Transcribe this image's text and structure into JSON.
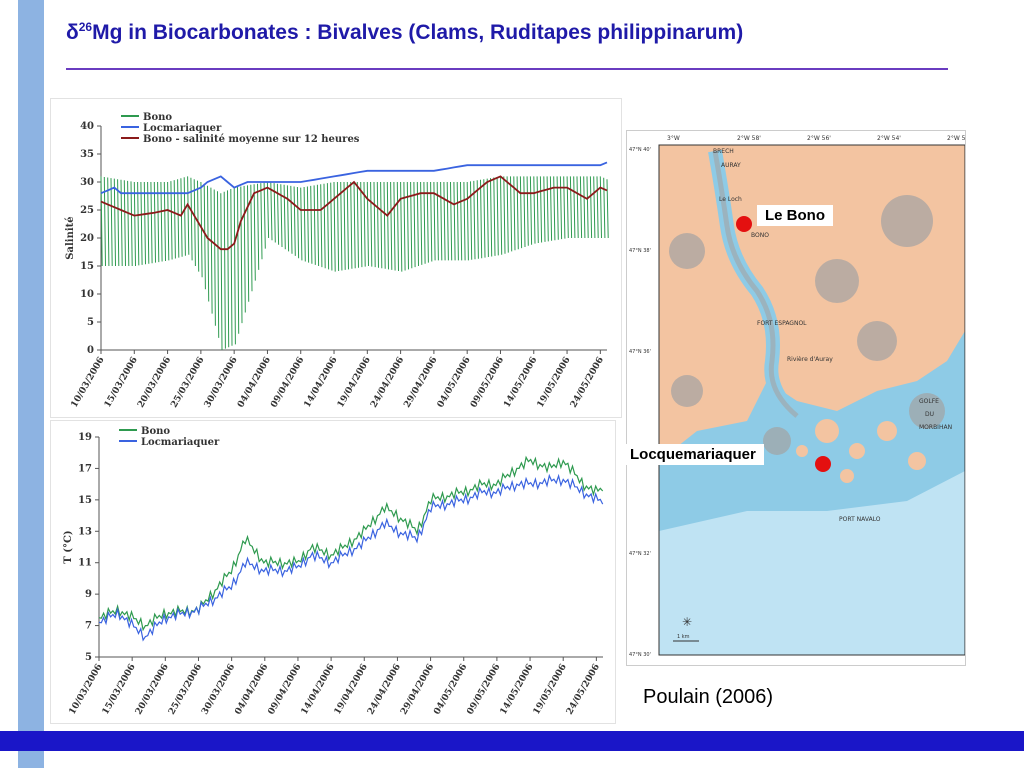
{
  "slide": {
    "title_delta": "δ",
    "title_sup": "26",
    "title_rest": "Mg in Biocarbonates : Bivalves (Clams, Ruditapes philippinarum)",
    "citation": "Poulain (2006)"
  },
  "colors": {
    "green": "#2e9a4f",
    "blue": "#3a63e0",
    "red": "#8b1a1a",
    "accent": "#1f1aa8"
  },
  "chart_data": [
    {
      "type": "line",
      "ylabel": "Salinité",
      "ylim": [
        0,
        40
      ],
      "yticks": [
        0,
        5,
        10,
        15,
        20,
        25,
        30,
        35,
        40
      ],
      "xticks": [
        "10/03/2006",
        "15/03/2006",
        "20/03/2006",
        "25/03/2006",
        "30/03/2006",
        "04/04/2006",
        "09/04/2006",
        "14/04/2006",
        "19/04/2006",
        "24/04/2006",
        "29/04/2006",
        "04/05/2006",
        "09/05/2006",
        "14/05/2006",
        "19/05/2006",
        "24/05/2006"
      ],
      "series": [
        {
          "name": "Bono",
          "color": "#2e9a4f",
          "kind": "envelope",
          "days": [
            0,
            5,
            10,
            13,
            15,
            18,
            20,
            25,
            30,
            35,
            40,
            45,
            50,
            55,
            60,
            65,
            70,
            75,
            77
          ],
          "upper": [
            31,
            30,
            30,
            31,
            30,
            28,
            29,
            30,
            29,
            30,
            30,
            30,
            30,
            30,
            31,
            31,
            31,
            31,
            30
          ],
          "lower": [
            15,
            15,
            16,
            17,
            13,
            0,
            1,
            20,
            16,
            14,
            15,
            14,
            16,
            16,
            17,
            19,
            20,
            20,
            20
          ]
        },
        {
          "name": "Locmariaquer",
          "color": "#3a63e0",
          "days": [
            0,
            2,
            3,
            5,
            8,
            10,
            13,
            15,
            16,
            18,
            20,
            22,
            25,
            30,
            35,
            40,
            45,
            50,
            55,
            60,
            65,
            70,
            75,
            77
          ],
          "values": [
            28,
            29,
            28,
            28,
            28,
            28,
            28,
            29,
            30,
            31,
            29,
            30,
            30,
            30,
            31,
            32,
            32,
            32,
            33,
            33,
            33,
            33,
            33,
            34
          ]
        },
        {
          "name": "Bono - salinité moyenne sur 12 heures",
          "color": "#8b1a1a",
          "days": [
            0,
            3,
            5,
            8,
            10,
            12,
            13,
            15,
            16,
            17,
            18,
            19,
            20,
            21,
            23,
            25,
            28,
            30,
            33,
            35,
            38,
            40,
            43,
            45,
            48,
            50,
            53,
            55,
            58,
            60,
            63,
            65,
            68,
            70,
            73,
            75,
            77
          ],
          "values": [
            26.5,
            25,
            24,
            24.5,
            25,
            24,
            26,
            22,
            20,
            19,
            18,
            18,
            19,
            23,
            28,
            29,
            27,
            25,
            25,
            27,
            30,
            27,
            24,
            27,
            28,
            28,
            26,
            27,
            30,
            31,
            28,
            28,
            29,
            29,
            27,
            29,
            28
          ]
        }
      ]
    },
    {
      "type": "line",
      "ylabel": "T (°C)",
      "ylim": [
        5,
        19
      ],
      "yticks": [
        5,
        7,
        9,
        11,
        13,
        15,
        17,
        19
      ],
      "xticks": [
        "10/03/2006",
        "15/03/2006",
        "20/03/2006",
        "25/03/2006",
        "30/03/2006",
        "04/04/2006",
        "09/04/2006",
        "14/04/2006",
        "19/04/2006",
        "24/04/2006",
        "29/04/2006",
        "04/05/2006",
        "09/05/2006",
        "14/05/2006",
        "19/05/2006",
        "24/05/2006"
      ],
      "series": [
        {
          "name": "Bono",
          "color": "#2e9a4f",
          "days": [
            0,
            3,
            5,
            7,
            10,
            15,
            20,
            22,
            25,
            28,
            30,
            32,
            35,
            37,
            40,
            43,
            45,
            48,
            50,
            55,
            58,
            60,
            63,
            65,
            68,
            70,
            73,
            75,
            77
          ],
          "values": [
            7.5,
            8,
            7.5,
            7,
            7.8,
            8,
            10.5,
            12.5,
            11,
            11,
            11,
            12,
            11.5,
            12,
            13,
            14.5,
            14,
            13,
            15,
            15.5,
            16,
            16,
            17,
            17.5,
            17,
            17.5,
            16,
            15.5,
            16
          ]
        },
        {
          "name": "Locmariaquer",
          "color": "#3a63e0",
          "days": [
            0,
            3,
            5,
            7,
            10,
            15,
            20,
            22,
            25,
            28,
            30,
            32,
            35,
            37,
            40,
            43,
            45,
            48,
            50,
            55,
            58,
            60,
            63,
            65,
            68,
            70,
            73,
            75,
            77
          ],
          "values": [
            7.2,
            7.8,
            7,
            6.3,
            7.5,
            8,
            9.5,
            11,
            10.5,
            10.5,
            10.7,
            11.5,
            11,
            11.5,
            12.3,
            13.5,
            13,
            12.5,
            14.5,
            15,
            15.5,
            15.5,
            16,
            16,
            16.2,
            16.3,
            15.5,
            15,
            14.8
          ]
        }
      ]
    }
  ],
  "map": {
    "sea_color": "#8ecbe6",
    "deep_sea_color": "#bfe3f3",
    "land_color": "#f3c4a1",
    "mud_color": "#a3a3a3",
    "top_ticks": [
      "3°W",
      "2°W 58'",
      "2°W 56'",
      "2°W 54'",
      "2°W 52'"
    ],
    "left_ticks": [
      "47°N 40'",
      "47°N 38'",
      "47°N 36'",
      "47°N 34'",
      "47°N 32'",
      "47°N 30'"
    ],
    "places": [
      "AURAY",
      "BONO",
      "FORT ESPAGNOL",
      "GOLFE",
      "DU",
      "MORBIHAN",
      "PORT NAVALO",
      "Le Loch",
      "Rivière d'Auray",
      "BRECH"
    ],
    "scale_text": "1 km",
    "sites": [
      {
        "name": "Le Bono"
      },
      {
        "name": "Locquemariaquer"
      }
    ]
  }
}
